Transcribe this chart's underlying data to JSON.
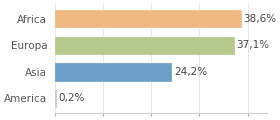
{
  "categories": [
    "America",
    "Asia",
    "Europa",
    "Africa"
  ],
  "values": [
    0.2,
    24.2,
    37.1,
    38.6
  ],
  "labels": [
    "0,2%",
    "24,2%",
    "37,1%",
    "38,6%"
  ],
  "bar_colors": [
    "#ffffff",
    "#6b9ec8",
    "#b5c98a",
    "#f0b982"
  ],
  "bar_edge_colors": [
    "#bbbbbb",
    "#6b9ec8",
    "#b5c98a",
    "#f0b982"
  ],
  "background_color": "#ffffff",
  "xlim": [
    0,
    44
  ],
  "label_fontsize": 7.5,
  "tick_fontsize": 7.5
}
